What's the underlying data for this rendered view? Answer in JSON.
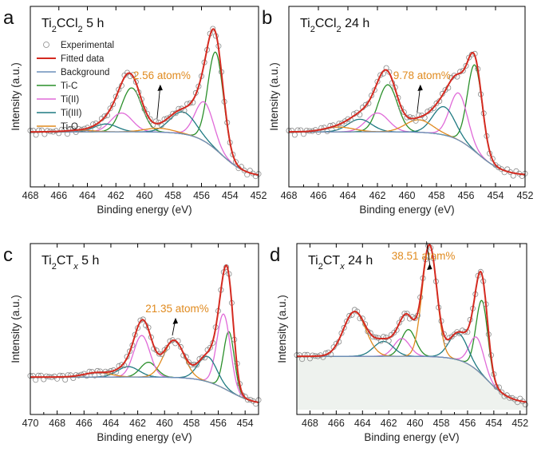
{
  "colors": {
    "experimental": "#8a8a8a",
    "fitted": "#d42a20",
    "background": "#6c8fba",
    "ti_c": "#2a8f2a",
    "ti_ii": "#e06ad8",
    "ti_iii": "#1f7a82",
    "ti_o": "#e08a1e",
    "annotation": "#e08a1e"
  },
  "legend": [
    "Experimental",
    "Fitted data",
    "Background",
    "Ti-C",
    "Ti(II)",
    "Ti(III)",
    "Ti-O"
  ],
  "chart_data": [
    {
      "type": "line",
      "panel": "a",
      "title": "Ti2CCl2  5 h",
      "title_parts": {
        "base": "Ti",
        "sub1": "2",
        "mid": "CCl",
        "sub2": "2",
        "tail": "  5 h"
      },
      "xlabel": "Binding energy (eV)",
      "ylabel": "Intensity (a.u.)",
      "xlim": [
        468,
        452
      ],
      "ylim": [
        0,
        1
      ],
      "xticks": [
        468,
        466,
        464,
        462,
        460,
        458,
        456,
        454,
        452
      ],
      "annotation": {
        "text": "2.56 atom%",
        "x": 459.0
      },
      "background": {
        "high": 0.32,
        "low": 0.03,
        "center": 454.6,
        "width": 0.9
      },
      "series": [
        {
          "name": "Ti-C",
          "peaks": [
            [
              455.0,
              0.62,
              0.55
            ],
            [
              460.9,
              0.28,
              0.7
            ]
          ]
        },
        {
          "name": "Ti(II)",
          "peaks": [
            [
              455.8,
              0.25,
              0.65
            ],
            [
              461.6,
              0.12,
              0.75
            ]
          ]
        },
        {
          "name": "Ti(III)",
          "peaks": [
            [
              457.3,
              0.14,
              0.9
            ],
            [
              462.7,
              0.05,
              0.8
            ]
          ]
        },
        {
          "name": "Ti-O",
          "peaks": [
            [
              459.0,
              0.025,
              1.0
            ],
            [
              464.5,
              0.01,
              1.0
            ]
          ]
        }
      ]
    },
    {
      "type": "line",
      "panel": "b",
      "title": "Ti2CCl2  24 h",
      "title_parts": {
        "base": "Ti",
        "sub1": "2",
        "mid": "CCl",
        "sub2": "2",
        "tail": "  24 h"
      },
      "xlabel": "Binding energy (eV)",
      "ylabel": "Intensity (a.u.)",
      "xlim": [
        468,
        452
      ],
      "ylim": [
        0,
        1
      ],
      "xticks": [
        468,
        466,
        464,
        462,
        460,
        458,
        456,
        454,
        452
      ],
      "annotation": {
        "text": "9.78 atom%",
        "x": 459.2
      },
      "background": {
        "high": 0.32,
        "low": 0.04,
        "center": 455.2,
        "width": 0.9
      },
      "series": [
        {
          "name": "Ti-C",
          "peaks": [
            [
              455.4,
              0.55,
              0.5
            ],
            [
              461.3,
              0.3,
              0.65
            ]
          ]
        },
        {
          "name": "Ti(II)",
          "peaks": [
            [
              456.5,
              0.3,
              0.6
            ],
            [
              462.0,
              0.12,
              0.75
            ]
          ]
        },
        {
          "name": "Ti(III)",
          "peaks": [
            [
              457.5,
              0.18,
              0.75
            ],
            [
              463.2,
              0.08,
              0.8
            ]
          ]
        },
        {
          "name": "Ti-O",
          "peaks": [
            [
              459.2,
              0.08,
              0.9
            ],
            [
              464.6,
              0.03,
              1.0
            ]
          ]
        }
      ]
    },
    {
      "type": "line",
      "panel": "c",
      "title": "Ti2CTx  5 h",
      "title_parts": {
        "base": "Ti",
        "sub1": "2",
        "mid": "CT",
        "sub2": "x",
        "tail": "  5 h"
      },
      "xlabel": "Binding energy (eV)",
      "ylabel": "Intensity (a.u.)",
      "xlim": [
        470,
        453
      ],
      "ylim": [
        0,
        1
      ],
      "xticks": [
        470,
        468,
        466,
        464,
        462,
        460,
        458,
        456,
        454
      ],
      "annotation": {
        "text": "21.35 atom%",
        "x": 459.3
      },
      "background": {
        "high": 0.22,
        "low": 0.03,
        "center": 455.2,
        "width": 1.0
      },
      "series": [
        {
          "name": "Ti-C",
          "peaks": [
            [
              455.2,
              0.4,
              0.4
            ],
            [
              461.2,
              0.1,
              0.6
            ]
          ]
        },
        {
          "name": "Ti(II)",
          "peaks": [
            [
              455.6,
              0.5,
              0.5
            ],
            [
              461.7,
              0.28,
              0.6
            ]
          ]
        },
        {
          "name": "Ti(III)",
          "peaks": [
            [
              456.8,
              0.17,
              0.7
            ],
            [
              462.7,
              0.07,
              0.8
            ]
          ]
        },
        {
          "name": "Ti-O",
          "peaks": [
            [
              459.3,
              0.25,
              0.75
            ],
            [
              465.0,
              0.03,
              1.0
            ]
          ]
        }
      ]
    },
    {
      "type": "line",
      "panel": "d",
      "title": "Ti2CTx  24 h",
      "title_parts": {
        "base": "Ti",
        "sub1": "2",
        "mid": "CT",
        "sub2": "x",
        "tail": "  24 h"
      },
      "xlabel": "Binding energy (eV)",
      "ylabel": "Intensity (a.u.)",
      "xlim": [
        469,
        451.5
      ],
      "ylim": [
        0,
        1
      ],
      "xticks": [
        468,
        466,
        464,
        462,
        460,
        458,
        456,
        454,
        452
      ],
      "annotation": {
        "text": "38.51 atom%",
        "x": 459.0
      },
      "background": {
        "high": 0.36,
        "low": 0.04,
        "center": 454.5,
        "width": 0.9
      },
      "series": [
        {
          "name": "Ti-C",
          "peaks": [
            [
              454.9,
              0.5,
              0.45
            ],
            [
              460.5,
              0.18,
              0.55
            ]
          ]
        },
        {
          "name": "Ti(II)",
          "peaks": [
            [
              455.3,
              0.22,
              0.55
            ],
            [
              461.0,
              0.12,
              0.6
            ]
          ]
        },
        {
          "name": "Ti(III)",
          "peaks": [
            [
              456.7,
              0.18,
              0.7
            ],
            [
              462.4,
              0.1,
              0.75
            ]
          ]
        },
        {
          "name": "Ti-O",
          "peaks": [
            [
              458.9,
              0.75,
              0.55
            ],
            [
              464.6,
              0.3,
              0.85
            ]
          ]
        }
      ]
    }
  ]
}
